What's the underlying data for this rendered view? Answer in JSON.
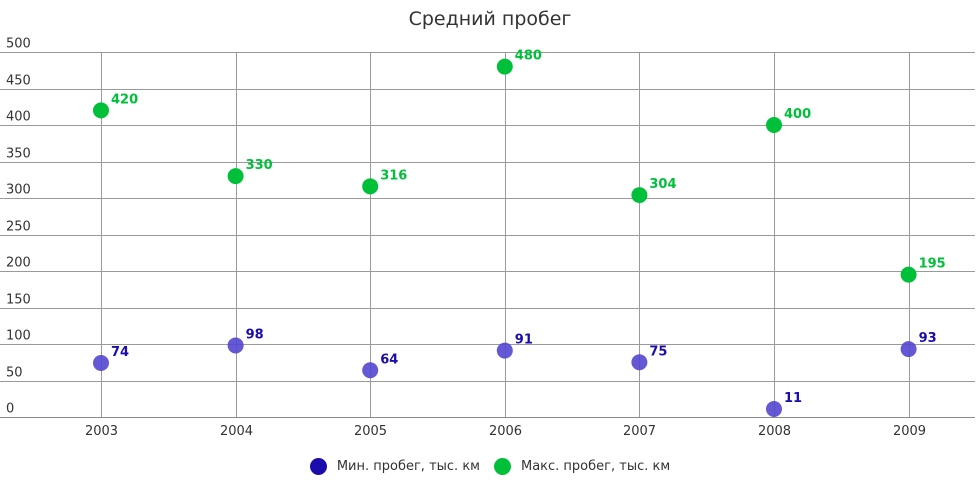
{
  "chart_data": {
    "type": "scatter",
    "title": "Средний пробег",
    "xlabel": "",
    "ylabel": "",
    "categories": [
      "2003",
      "2004",
      "2005",
      "2006",
      "2007",
      "2008",
      "2009"
    ],
    "yticks": [
      0,
      50,
      100,
      150,
      200,
      250,
      300,
      350,
      400,
      450,
      500
    ],
    "ylim": [
      0,
      500
    ],
    "grid": true,
    "legend_position": "bottom",
    "series": [
      {
        "name": "Мин. пробег, тыс. км",
        "color": "#1a0dab",
        "marker_color": "#5346cf",
        "values": [
          74,
          98,
          64,
          91,
          75,
          11,
          93
        ]
      },
      {
        "name": "Макс. пробег, тыс. км",
        "color": "#00c03a",
        "marker_color": "#00c03a",
        "values": [
          420,
          330,
          316,
          480,
          304,
          400,
          195
        ]
      }
    ]
  }
}
